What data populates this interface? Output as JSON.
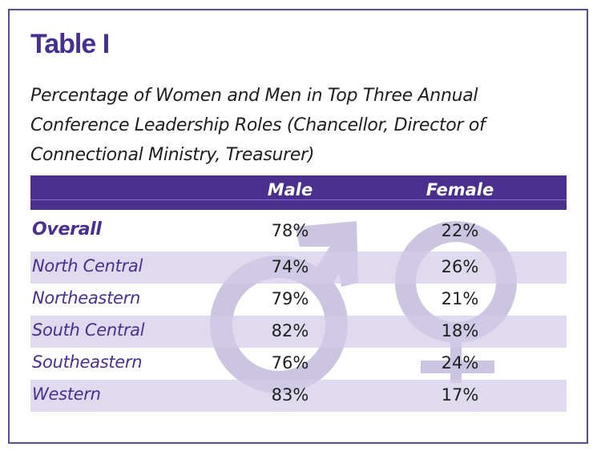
{
  "title": "Table I",
  "caption_lines": [
    "Percentage of Women and Men in Top Three Annual",
    "Conference Leadership Roles (Chancellor, Director of",
    "Connectional Ministry, Treasurer)"
  ],
  "colors": {
    "accent": "#4a2f8e",
    "row_shade": "#dcd7ec",
    "watermark": "#cbc5e2"
  },
  "watermark_icons": [
    "male-symbol-icon",
    "female-symbol-icon"
  ],
  "table": {
    "columns": [
      "",
      "Male",
      "Female"
    ],
    "rows": [
      {
        "label": "Overall",
        "male": "78%",
        "female": "22%"
      },
      {
        "label": "North Central",
        "male": "74%",
        "female": "26%"
      },
      {
        "label": "Northeastern",
        "male": "79%",
        "female": "21%"
      },
      {
        "label": "South Central",
        "male": "82%",
        "female": "18%"
      },
      {
        "label": "Southeastern",
        "male": "76%",
        "female": "24%"
      },
      {
        "label": "Western",
        "male": "83%",
        "female": "17%"
      }
    ]
  }
}
